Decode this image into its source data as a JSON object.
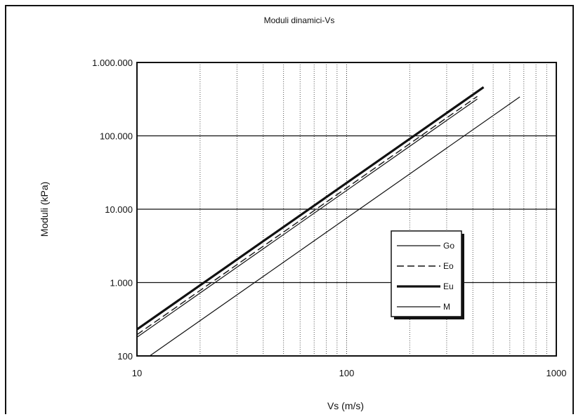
{
  "chart_data": {
    "type": "line",
    "title": "Moduli dinamici-Vs",
    "xlabel": "Vs (m/s)",
    "ylabel": "Moduli (kPa)",
    "x_scale": "log",
    "y_scale": "log",
    "xlim": [
      10,
      1000
    ],
    "ylim": [
      100,
      1000000
    ],
    "x_ticks": [
      10,
      100,
      1000
    ],
    "x_tick_labels": [
      "10",
      "100",
      "1000"
    ],
    "y_ticks": [
      100,
      1000,
      10000,
      100000,
      1000000
    ],
    "y_tick_labels": [
      "100",
      "1.000",
      "10.000",
      "100.000",
      "1.000.000"
    ],
    "grid": true,
    "legend_position": "lower-right",
    "series": [
      {
        "name": "Go",
        "style": "thin-solid",
        "x": [
          10,
          420
        ],
        "y": [
          180,
          318000
        ]
      },
      {
        "name": "Eo",
        "style": "dashed",
        "x": [
          10,
          420
        ],
        "y": [
          195,
          345000
        ]
      },
      {
        "name": "Eu",
        "style": "thick-solid",
        "x": [
          10,
          450
        ],
        "y": [
          230,
          460000
        ]
      },
      {
        "name": "M",
        "style": "thin-solid",
        "x": [
          11.5,
          670
        ],
        "y": [
          100,
          340000
        ]
      }
    ]
  }
}
